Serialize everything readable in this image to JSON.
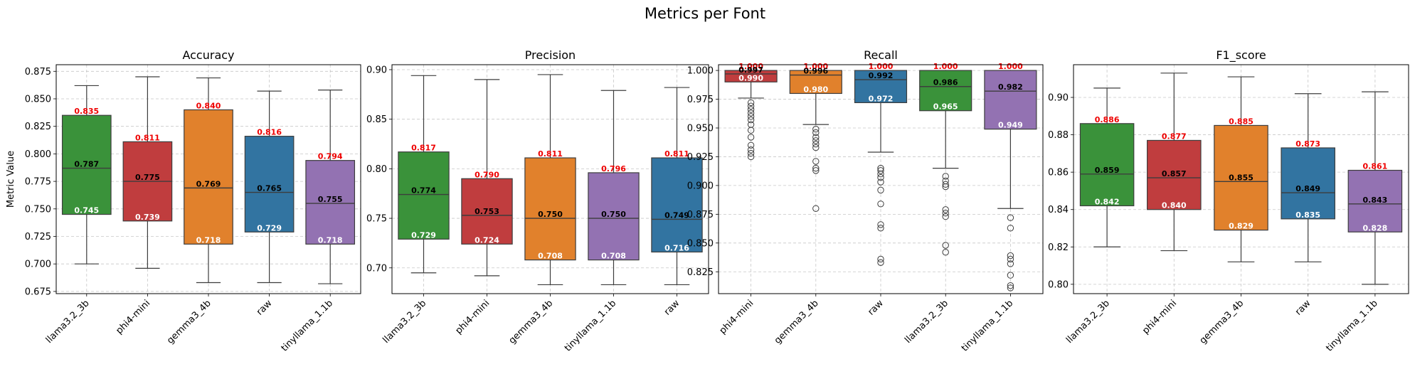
{
  "figure": {
    "title": "Metrics per Font",
    "ylabel": "Metric Value"
  },
  "colors": {
    "llama3.2_3b": "#3a923a",
    "phi4-mini": "#c03d3e",
    "gemma3_4b": "#e1812c",
    "raw": "#3274a1",
    "tinyllama_1.1b": "#9372b2",
    "q3_label": "#ee0000",
    "median_label": "#000000",
    "q1_label": "#ffffff"
  },
  "chart_data": [
    {
      "type": "box",
      "title": "Accuracy",
      "ylabel": "Metric Value",
      "ylim": [
        0.673,
        0.881
      ],
      "yticks": [
        0.675,
        0.7,
        0.725,
        0.75,
        0.775,
        0.8,
        0.825,
        0.85,
        0.875
      ],
      "tick_decimals": 3,
      "grid": true,
      "categories": [
        "llama3.2_3b",
        "phi4-mini",
        "gemma3_4b",
        "raw",
        "tinyllama_1.1b"
      ],
      "boxes": [
        {
          "name": "llama3.2_3b",
          "whisker_low": 0.7,
          "q1": 0.745,
          "median": 0.787,
          "q3": 0.835,
          "whisker_high": 0.862,
          "outliers": []
        },
        {
          "name": "phi4-mini",
          "whisker_low": 0.696,
          "q1": 0.739,
          "median": 0.775,
          "q3": 0.811,
          "whisker_high": 0.87,
          "outliers": []
        },
        {
          "name": "gemma3_4b",
          "whisker_low": 0.683,
          "q1": 0.718,
          "median": 0.769,
          "q3": 0.84,
          "whisker_high": 0.869,
          "outliers": []
        },
        {
          "name": "raw",
          "whisker_low": 0.683,
          "q1": 0.729,
          "median": 0.765,
          "q3": 0.816,
          "whisker_high": 0.857,
          "outliers": []
        },
        {
          "name": "tinyllama_1.1b",
          "whisker_low": 0.682,
          "q1": 0.718,
          "median": 0.755,
          "q3": 0.794,
          "whisker_high": 0.858,
          "outliers": []
        }
      ]
    },
    {
      "type": "box",
      "title": "Precision",
      "ylim": [
        0.674,
        0.905
      ],
      "yticks": [
        0.7,
        0.75,
        0.8,
        0.85,
        0.9
      ],
      "tick_decimals": 2,
      "grid": true,
      "categories": [
        "llama3.2_3b",
        "phi4-mini",
        "gemma3_4b",
        "tinyllama_1.1b",
        "raw"
      ],
      "boxes": [
        {
          "name": "llama3.2_3b",
          "whisker_low": 0.695,
          "q1": 0.729,
          "median": 0.774,
          "q3": 0.817,
          "whisker_high": 0.894,
          "outliers": []
        },
        {
          "name": "phi4-mini",
          "whisker_low": 0.692,
          "q1": 0.724,
          "median": 0.753,
          "q3": 0.79,
          "whisker_high": 0.89,
          "outliers": []
        },
        {
          "name": "gemma3_4b",
          "whisker_low": 0.683,
          "q1": 0.708,
          "median": 0.75,
          "q3": 0.811,
          "whisker_high": 0.895,
          "outliers": []
        },
        {
          "name": "tinyllama_1.1b",
          "whisker_low": 0.683,
          "q1": 0.708,
          "median": 0.75,
          "q3": 0.796,
          "whisker_high": 0.879,
          "outliers": []
        },
        {
          "name": "raw",
          "whisker_low": 0.683,
          "q1": 0.716,
          "median": 0.749,
          "q3": 0.811,
          "whisker_high": 0.882,
          "outliers": []
        }
      ]
    },
    {
      "type": "box",
      "title": "Recall",
      "ylim": [
        0.806,
        1.005
      ],
      "yticks": [
        0.825,
        0.85,
        0.875,
        0.9,
        0.925,
        0.95,
        0.975,
        1.0
      ],
      "tick_decimals": 3,
      "grid": true,
      "categories": [
        "phi4-mini",
        "gemma3_4b",
        "raw",
        "llama3.2_3b",
        "tinyllama_1.1b"
      ],
      "boxes": [
        {
          "name": "phi4-mini",
          "whisker_low": 0.976,
          "q1": 0.99,
          "median": 0.997,
          "q3": 1.0,
          "whisker_high": 1.0,
          "outliers": [
            0.972,
            0.969,
            0.966,
            0.963,
            0.96,
            0.957,
            0.953,
            0.948,
            0.942,
            0.935,
            0.931,
            0.928,
            0.925
          ]
        },
        {
          "name": "gemma3_4b",
          "whisker_low": 0.953,
          "q1": 0.98,
          "median": 0.996,
          "q3": 1.0,
          "whisker_high": 1.0,
          "outliers": [
            0.949,
            0.946,
            0.942,
            0.939,
            0.936,
            0.933,
            0.921,
            0.915,
            0.913,
            0.88
          ]
        },
        {
          "name": "raw",
          "whisker_low": 0.929,
          "q1": 0.972,
          "median": 0.992,
          "q3": 1.0,
          "whisker_high": 1.0,
          "outliers": [
            0.915,
            0.913,
            0.91,
            0.907,
            0.903,
            0.896,
            0.884,
            0.866,
            0.863,
            0.836,
            0.833
          ]
        },
        {
          "name": "llama3.2_3b",
          "whisker_low": 0.915,
          "q1": 0.965,
          "median": 0.986,
          "q3": 1.0,
          "whisker_high": 1.0,
          "outliers": [
            0.908,
            0.904,
            0.901,
            0.899,
            0.879,
            0.876,
            0.873,
            0.848,
            0.842
          ]
        },
        {
          "name": "tinyllama_1.1b",
          "whisker_low": 0.88,
          "q1": 0.949,
          "median": 0.982,
          "q3": 1.0,
          "whisker_high": 1.0,
          "outliers": [
            0.872,
            0.863,
            0.839,
            0.836,
            0.832,
            0.822,
            0.813,
            0.811
          ]
        }
      ]
    },
    {
      "type": "box",
      "title": "F1_score",
      "ylim": [
        0.795,
        0.9175
      ],
      "yticks": [
        0.8,
        0.82,
        0.84,
        0.86,
        0.88,
        0.9
      ],
      "tick_decimals": 2,
      "grid": true,
      "categories": [
        "llama3.2_3b",
        "phi4-mini",
        "gemma3_4b",
        "raw",
        "tinyllama_1.1b"
      ],
      "boxes": [
        {
          "name": "llama3.2_3b",
          "whisker_low": 0.82,
          "q1": 0.842,
          "median": 0.859,
          "q3": 0.886,
          "whisker_high": 0.905,
          "outliers": []
        },
        {
          "name": "phi4-mini",
          "whisker_low": 0.818,
          "q1": 0.84,
          "median": 0.857,
          "q3": 0.877,
          "whisker_high": 0.913,
          "outliers": []
        },
        {
          "name": "gemma3_4b",
          "whisker_low": 0.812,
          "q1": 0.829,
          "median": 0.855,
          "q3": 0.885,
          "whisker_high": 0.911,
          "outliers": []
        },
        {
          "name": "raw",
          "whisker_low": 0.812,
          "q1": 0.835,
          "median": 0.849,
          "q3": 0.873,
          "whisker_high": 0.902,
          "outliers": []
        },
        {
          "name": "tinyllama_1.1b",
          "whisker_low": 0.8,
          "q1": 0.828,
          "median": 0.843,
          "q3": 0.861,
          "whisker_high": 0.903,
          "outliers": []
        }
      ]
    }
  ]
}
